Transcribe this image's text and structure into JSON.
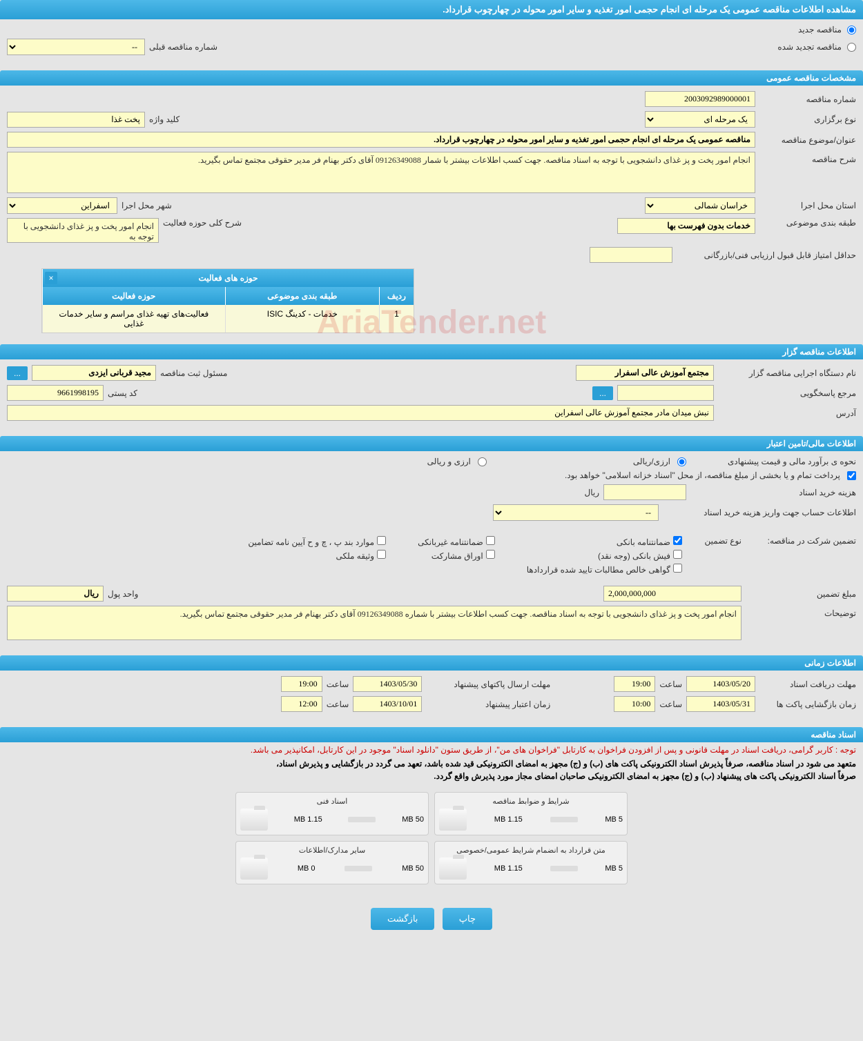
{
  "page_title": "مشاهده اطلاعات مناقصه عمومی یک مرحله ای انجام حجمی امور تغذیه و سایر امور محوله در چهارچوب قرارداد.",
  "tender_type": {
    "new_label": "مناقصه جدید",
    "renewed_label": "مناقصه تجدید شده",
    "prev_number_label": "شماره مناقصه قبلی",
    "prev_number_value": "--"
  },
  "section_general": {
    "header": "مشخصات مناقصه عمومی",
    "tender_number_label": "شماره مناقصه",
    "tender_number_value": "2003092989000001",
    "holding_type_label": "نوع برگزاری",
    "holding_type_value": "یک مرحله ای",
    "keyword_label": "کلید واژه",
    "keyword_value": "پخت غذا",
    "subject_label": "عنوان/موضوع مناقصه",
    "subject_value": "مناقصه عمومی یک مرحله ای انجام حجمی امور تغذیه و سایر امور محوله در چهارچوب قرارداد.",
    "description_label": "شرح مناقصه",
    "description_value": "انجام امور پخت و پز غذای دانشجویی با توجه به اسناد مناقصه. جهت کسب اطلاعات بیشتر با شمار 09126349088 آقای دکتر بهنام فر مدیر حقوقی مجتمع تماس بگیرید.",
    "province_label": "استان محل اجرا",
    "province_value": "خراسان شمالی",
    "city_label": "شهر محل اجرا",
    "city_value": "اسفراین",
    "category_label": "طبقه بندی موضوعی",
    "category_value": "خدمات بدون فهرست بها",
    "activity_scope_label": "شرح کلی حوزه فعالیت",
    "activity_scope_value": "انجام امور پخت و پز غذای دانشجویی با توجه به",
    "min_score_label": "حداقل امتیاز قابل قبول ارزیابی فنی/بازرگانی",
    "min_score_value": ""
  },
  "activity_table": {
    "header": "حوزه های فعالیت",
    "col_row": "ردیف",
    "col_category": "طبقه بندی موضوعی",
    "col_activity": "حوزه فعالیت",
    "rows": [
      {
        "num": "1",
        "category": "خدمات - کدینگ ISIC",
        "activity": "فعالیت‌های تهیه غذای مراسم و سایر خدمات غذایی"
      }
    ]
  },
  "section_organizer": {
    "header": "اطلاعات مناقصه گزار",
    "org_name_label": "نام دستگاه اجرایی مناقصه گزار",
    "org_name_value": "مجتمع آموزش عالی اسفرار",
    "registrar_label": "مسئول ثبت مناقصه",
    "registrar_value": "مجید قربانی ایزدی",
    "contact_label": "مرجع پاسخگویی",
    "contact_value": "",
    "postal_label": "کد پستی",
    "postal_value": "9661998195",
    "more_btn": "...",
    "address_label": "آدرس",
    "address_value": "نبش میدان مادر مجتمع آموزش عالی اسفراین"
  },
  "section_financial": {
    "header": "اطلاعات مالی/تامین اعتبار",
    "estimate_label": "نحوه ی برآورد مالی و قیمت پیشنهادی",
    "currency_rial": "ارزی/ریالی",
    "currency_foreign": "ارزی و ریالی",
    "payment_note": "پرداخت تمام و یا بخشی از مبلغ مناقصه، از محل \"اسناد خزانه اسلامی\" خواهد بود.",
    "doc_cost_label": "هزینه خرید اسناد",
    "doc_cost_unit": "ریال",
    "account_label": "اطلاعات حساب جهت واریز هزینه خرید اسناد",
    "account_value": "--",
    "guarantee_label": "تضمین شرکت در مناقصه:",
    "guarantee_type_label": "نوع تضمین",
    "guarantee_types": {
      "bank": "ضمانتنامه بانکی",
      "nonbank": "ضمانتنامه غیربانکی",
      "regulation": "موارد بند پ ، چ و ح آیین نامه تضامین",
      "cash": "فیش بانکی (وجه نقد)",
      "bonds": "اوراق مشارکت",
      "property": "وثیقه ملکی",
      "receivables": "گواهی خالص مطالبات تایید شده قراردادها"
    },
    "guarantee_amount_label": "مبلغ تضمین",
    "guarantee_amount_value": "2,000,000,000",
    "currency_unit_label": "واحد پول",
    "currency_unit_value": "ریال",
    "notes_label": "توضیحات",
    "notes_value": "انجام امور پخت و پز غذای دانشجویی با توجه به اسناد مناقصه. جهت کسب اطلاعات بیشتر با شماره 09126349088 آقای دکتر بهنام فر مدیر حقوقی مجتمع تماس بگیرید."
  },
  "section_timing": {
    "header": "اطلاعات زمانی",
    "receive_deadline_label": "مهلت دریافت اسناد",
    "receive_deadline_date": "1403/05/20",
    "receive_deadline_time": "19:00",
    "submit_deadline_label": "مهلت ارسال پاکتهای پیشنهاد",
    "submit_deadline_date": "1403/05/30",
    "submit_deadline_time": "19:00",
    "opening_label": "زمان بازگشایی پاکت ها",
    "opening_date": "1403/05/31",
    "opening_time": "10:00",
    "validity_label": "زمان اعتبار پیشنهاد",
    "validity_date": "1403/10/01",
    "validity_time": "12:00",
    "time_label": "ساعت"
  },
  "section_docs": {
    "header": "اسناد مناقصه",
    "warning": "توجه : کاربر گرامی، دریافت اسناد در مهلت قانونی و پس از افزودن فراخوان به کارتابل \"فراخوان های من\"، از طریق ستون \"دانلود اسناد\" موجود در این کارتابل، امکانپذیر می باشد.",
    "note1": "متعهد می شود در اسناد مناقصه، صرفاً پذیرش اسناد الکترونیکی پاکت های (ب) و (ج) مجهز به امضای الکترونیکی قید شده باشد، تعهد می گردد در بازگشایی و پذیرش اسناد،",
    "note2": "صرفاً اسناد الکترونیکی پاکت های پیشنهاد (ب) و (ج) مجهز به امضای الکترونیکی صاحبان امضای مجاز مورد پذیرش واقع گردد.",
    "files": [
      {
        "title": "شرایط و ضوابط مناقصه",
        "used": "1.15 MB",
        "total": "5 MB",
        "fill": 23
      },
      {
        "title": "اسناد فنی",
        "used": "1.15 MB",
        "total": "50 MB",
        "fill": 3
      },
      {
        "title": "متن قرارداد به انضمام شرایط عمومی/خصوصی",
        "used": "1.15 MB",
        "total": "5 MB",
        "fill": 23
      },
      {
        "title": "سایر مدارک/اطلاعات",
        "used": "0 MB",
        "total": "50 MB",
        "fill": 0
      }
    ]
  },
  "buttons": {
    "print": "چاپ",
    "back": "بازگشت"
  },
  "watermark": "AriaTender.net"
}
